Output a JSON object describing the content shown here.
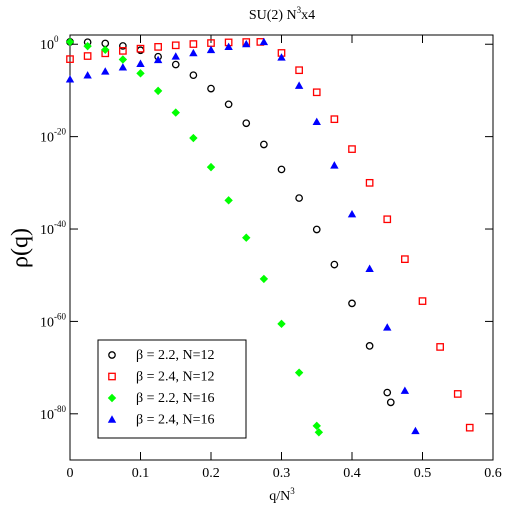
{
  "chart_data": {
    "type": "scatter",
    "title": {
      "text": "SU(2) N",
      "sup": "3",
      "tail": "x4"
    },
    "xlabel": {
      "text": "q/N",
      "sup": "3"
    },
    "ylabel": "ρ(q)",
    "log_y": true,
    "grid": false,
    "legend": "lower left",
    "xlim": [
      0,
      0.6
    ],
    "xticks": [
      0,
      0.1,
      0.2,
      0.3,
      0.4,
      0.5,
      0.6
    ],
    "ylim": [
      1e-90,
      100
    ],
    "yticks": [
      {
        "value": 1,
        "label": "10",
        "exponent": "0"
      },
      {
        "value": 1e-20,
        "label": "10",
        "exponent": "-20"
      },
      {
        "value": 1e-40,
        "label": "10",
        "exponent": "-40"
      },
      {
        "value": 1e-60,
        "label": "10",
        "exponent": "-60"
      },
      {
        "value": 1e-80,
        "label": "10",
        "exponent": "-80"
      }
    ],
    "series": [
      {
        "name": "β = 2.2, N=12",
        "color": "#000000",
        "marker": "circle",
        "x": [
          0,
          0.025,
          0.05,
          0.075,
          0.1,
          0.125,
          0.15,
          0.175,
          0.2,
          0.225,
          0.25,
          0.275,
          0.3,
          0.325,
          0.35,
          0.375,
          0.4,
          0.425,
          0.45,
          0.455
        ],
        "values": [
          3.2,
          2.8,
          1.5,
          0.43,
          0.05,
          0.002,
          4e-05,
          2e-07,
          2.5e-10,
          1e-13,
          8e-18,
          2e-22,
          8e-28,
          5e-34,
          8e-41,
          2e-48,
          8e-57,
          5e-66,
          4e-76,
          3e-78
        ]
      },
      {
        "name": "β = 2.4, N=12",
        "color": "#ff0000",
        "marker": "square",
        "x": [
          0,
          0.025,
          0.05,
          0.075,
          0.1,
          0.125,
          0.15,
          0.175,
          0.2,
          0.225,
          0.25,
          0.27,
          0.3,
          0.325,
          0.35,
          0.375,
          0.4,
          0.425,
          0.45,
          0.475,
          0.5,
          0.525,
          0.55,
          0.567
        ],
        "values": [
          0.0006,
          0.0028,
          0.011,
          0.037,
          0.11,
          0.27,
          0.59,
          1.1,
          1.8,
          2.5,
          3.0,
          3.2,
          0.013,
          2.4e-06,
          4e-11,
          6e-17,
          2e-23,
          1e-30,
          1.3e-38,
          3e-47,
          2.5e-56,
          3e-66,
          2e-76,
          1e-83
        ]
      },
      {
        "name": "β = 2.2, N=16",
        "color": "#00ff00",
        "marker": "diamond",
        "x": [
          0,
          0.025,
          0.05,
          0.075,
          0.1,
          0.125,
          0.15,
          0.175,
          0.2,
          0.225,
          0.25,
          0.275,
          0.3,
          0.325,
          0.35,
          0.353
        ],
        "values": [
          3.2,
          0.38,
          0.063,
          0.0005,
          5e-07,
          8e-11,
          1.6e-15,
          5e-21,
          2.5e-27,
          1.6e-34,
          1.3e-42,
          1.6e-51,
          3e-61,
          8e-72,
          2.5e-83,
          1e-84
        ]
      },
      {
        "name": "β = 2.4, N=16",
        "color": "#0000ff",
        "marker": "triangle",
        "x": [
          0,
          0.025,
          0.05,
          0.075,
          0.1,
          0.125,
          0.15,
          0.175,
          0.2,
          0.225,
          0.25,
          0.275,
          0.3,
          0.325,
          0.35,
          0.375,
          0.4,
          0.425,
          0.45,
          0.475,
          0.49
        ],
        "values": [
          2.5e-08,
          1.9e-07,
          1.3e-06,
          1e-05,
          6e-05,
          0.0004,
          0.0023,
          0.012,
          0.06,
          0.28,
          1.1,
          3.2,
          0.0014,
          1.1e-09,
          1.6e-17,
          6e-27,
          1.6e-37,
          2.5e-49,
          5e-62,
          1e-75,
          2e-84
        ]
      }
    ]
  }
}
